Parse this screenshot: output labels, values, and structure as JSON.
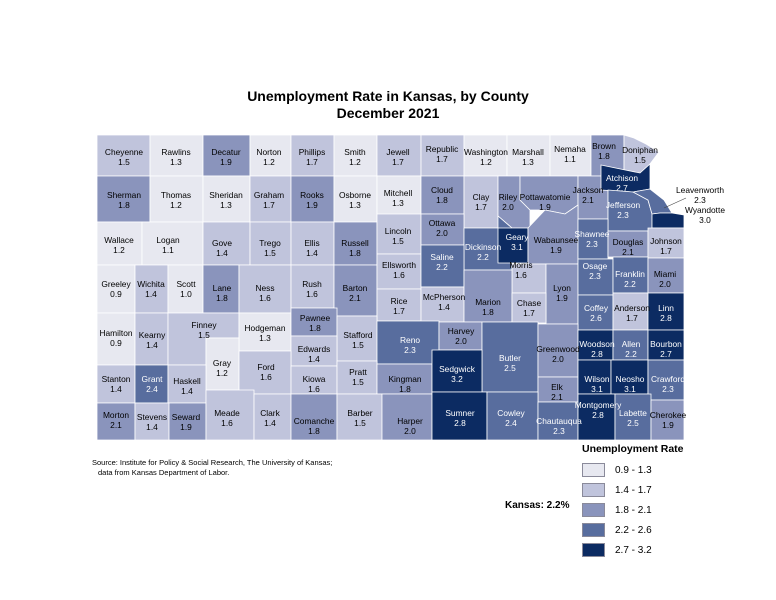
{
  "title": "Unemployment Rate in Kansas, by County",
  "subtitle": "December 2021",
  "source_line1": "Source: Institute for Policy & Social Research, The University of Kansas;",
  "source_line2": "data from Kansas Department of Labor.",
  "statewide": "Kansas: 2.2%",
  "legend": {
    "title": "Unemployment Rate",
    "classes": [
      {
        "label": "0.9 - 1.3",
        "color": "#e7e8f0"
      },
      {
        "label": "1.4 - 1.7",
        "color": "#c0c4dc"
      },
      {
        "label": "1.8 - 2.1",
        "color": "#8a94bc"
      },
      {
        "label": "2.2 - 2.6",
        "color": "#586d9e"
      },
      {
        "label": "2.7 - 3.2",
        "color": "#0c2b62"
      }
    ]
  },
  "counties": [
    {
      "name": "Cheyenne",
      "value": "1.5"
    },
    {
      "name": "Rawlins",
      "value": "1.3"
    },
    {
      "name": "Decatur",
      "value": "1.9"
    },
    {
      "name": "Norton",
      "value": "1.2"
    },
    {
      "name": "Phillips",
      "value": "1.7"
    },
    {
      "name": "Smith",
      "value": "1.2"
    },
    {
      "name": "Jewell",
      "value": "1.7"
    },
    {
      "name": "Republic",
      "value": "1.7"
    },
    {
      "name": "Washington",
      "value": "1.2"
    },
    {
      "name": "Marshall",
      "value": "1.3"
    },
    {
      "name": "Nemaha",
      "value": "1.1"
    },
    {
      "name": "Brown",
      "value": "1.8"
    },
    {
      "name": "Doniphan",
      "value": "1.5"
    },
    {
      "name": "Sherman",
      "value": "1.8"
    },
    {
      "name": "Thomas",
      "value": "1.2"
    },
    {
      "name": "Sheridan",
      "value": "1.3"
    },
    {
      "name": "Graham",
      "value": "1.7"
    },
    {
      "name": "Rooks",
      "value": "1.9"
    },
    {
      "name": "Osborne",
      "value": "1.3"
    },
    {
      "name": "Mitchell",
      "value": "1.3"
    },
    {
      "name": "Cloud",
      "value": "1.8"
    },
    {
      "name": "Clay",
      "value": "1.7"
    },
    {
      "name": "Riley",
      "value": "2.0"
    },
    {
      "name": "Pottawatomie",
      "value": "1.9"
    },
    {
      "name": "Jackson",
      "value": "2.1"
    },
    {
      "name": "Atchison",
      "value": "2.7"
    },
    {
      "name": "Jefferson",
      "value": "2.3"
    },
    {
      "name": "Leavenworth",
      "value": "2.3"
    },
    {
      "name": "Wyandotte",
      "value": "3.0"
    },
    {
      "name": "Wallace",
      "value": "1.2"
    },
    {
      "name": "Logan",
      "value": "1.1"
    },
    {
      "name": "Gove",
      "value": "1.4"
    },
    {
      "name": "Trego",
      "value": "1.5"
    },
    {
      "name": "Ellis",
      "value": "1.4"
    },
    {
      "name": "Russell",
      "value": "1.8"
    },
    {
      "name": "Lincoln",
      "value": "1.5"
    },
    {
      "name": "Ottawa",
      "value": "2.0"
    },
    {
      "name": "Dickinson",
      "value": "2.2"
    },
    {
      "name": "Geary",
      "value": "3.1"
    },
    {
      "name": "Wabaunsee",
      "value": "1.9"
    },
    {
      "name": "Shawnee",
      "value": "2.3"
    },
    {
      "name": "Douglas",
      "value": "2.1"
    },
    {
      "name": "Johnson",
      "value": "1.7"
    },
    {
      "name": "Greeley",
      "value": "0.9"
    },
    {
      "name": "Wichita",
      "value": "1.4"
    },
    {
      "name": "Scott",
      "value": "1.0"
    },
    {
      "name": "Lane",
      "value": "1.8"
    },
    {
      "name": "Ness",
      "value": "1.6"
    },
    {
      "name": "Rush",
      "value": "1.6"
    },
    {
      "name": "Barton",
      "value": "2.1"
    },
    {
      "name": "Ellsworth",
      "value": "1.6"
    },
    {
      "name": "Saline",
      "value": "2.2"
    },
    {
      "name": "Morris",
      "value": "1.6"
    },
    {
      "name": "Lyon",
      "value": "1.9"
    },
    {
      "name": "Osage",
      "value": "2.3"
    },
    {
      "name": "Franklin",
      "value": "2.2"
    },
    {
      "name": "Miami",
      "value": "2.0"
    },
    {
      "name": "Rice",
      "value": "1.7"
    },
    {
      "name": "McPherson",
      "value": "1.4"
    },
    {
      "name": "Marion",
      "value": "1.8"
    },
    {
      "name": "Chase",
      "value": "1.7"
    },
    {
      "name": "Coffey",
      "value": "2.6"
    },
    {
      "name": "Anderson",
      "value": "1.7"
    },
    {
      "name": "Linn",
      "value": "2.8"
    },
    {
      "name": "Hamilton",
      "value": "0.9"
    },
    {
      "name": "Kearny",
      "value": "1.4"
    },
    {
      "name": "Finney",
      "value": "1.5"
    },
    {
      "name": "Hodgeman",
      "value": "1.3"
    },
    {
      "name": "Pawnee",
      "value": "1.8"
    },
    {
      "name": "Stafford",
      "value": "1.5"
    },
    {
      "name": "Reno",
      "value": "2.3"
    },
    {
      "name": "Harvey",
      "value": "2.0"
    },
    {
      "name": "Butler",
      "value": "2.5"
    },
    {
      "name": "Greenwood",
      "value": "2.0"
    },
    {
      "name": "Woodson",
      "value": "2.8"
    },
    {
      "name": "Allen",
      "value": "2.2"
    },
    {
      "name": "Bourbon",
      "value": "2.7"
    },
    {
      "name": "Edwards",
      "value": "1.4"
    },
    {
      "name": "Gray",
      "value": "1.2"
    },
    {
      "name": "Ford",
      "value": "1.6"
    },
    {
      "name": "Kiowa",
      "value": "1.6"
    },
    {
      "name": "Pratt",
      "value": "1.5"
    },
    {
      "name": "Kingman",
      "value": "1.8"
    },
    {
      "name": "Sedgwick",
      "value": "3.2"
    },
    {
      "name": "Elk",
      "value": "2.1"
    },
    {
      "name": "Wilson",
      "value": "3.1"
    },
    {
      "name": "Neosho",
      "value": "3.1"
    },
    {
      "name": "Crawford",
      "value": "2.3"
    },
    {
      "name": "Stanton",
      "value": "1.4"
    },
    {
      "name": "Grant",
      "value": "2.4"
    },
    {
      "name": "Haskell",
      "value": "1.4"
    },
    {
      "name": "Morton",
      "value": "2.1"
    },
    {
      "name": "Stevens",
      "value": "1.4"
    },
    {
      "name": "Seward",
      "value": "1.9"
    },
    {
      "name": "Meade",
      "value": "1.6"
    },
    {
      "name": "Clark",
      "value": "1.4"
    },
    {
      "name": "Comanche",
      "value": "1.8"
    },
    {
      "name": "Barber",
      "value": "1.5"
    },
    {
      "name": "Harper",
      "value": "2.0"
    },
    {
      "name": "Sumner",
      "value": "2.8"
    },
    {
      "name": "Cowley",
      "value": "2.4"
    },
    {
      "name": "Chautauqua",
      "value": "2.3"
    },
    {
      "name": "Montgomery",
      "value": "2.8"
    },
    {
      "name": "Labette",
      "value": "2.5"
    },
    {
      "name": "Cherokee",
      "value": "1.9"
    }
  ]
}
